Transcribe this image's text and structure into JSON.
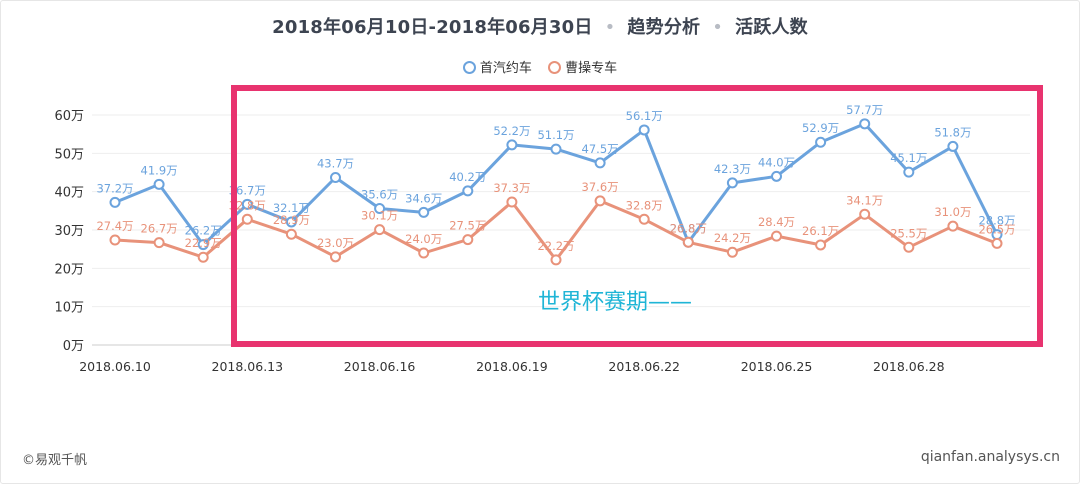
{
  "header": {
    "date_range": "2018年06月10日-2018年06月30日",
    "separator": "•",
    "section": "趋势分析",
    "metric": "活跃人数"
  },
  "legend": {
    "series1": "首汽约车",
    "series2": "曹操专车"
  },
  "annotation": "世界杯赛期——",
  "footer": {
    "source_left": "©易观千帆",
    "source_right": "qianfan.analysys.cn"
  },
  "colors": {
    "series1": "#6ba3dd",
    "series2": "#e8927a",
    "highlight_box": "#e8336f",
    "annotation": "#1fb5d6",
    "grid": "#eeeeee"
  },
  "chart_data": {
    "type": "line",
    "x": [
      "2018.06.10",
      "2018.06.11",
      "2018.06.12",
      "2018.06.13",
      "2018.06.14",
      "2018.06.15",
      "2018.06.16",
      "2018.06.17",
      "2018.06.18",
      "2018.06.19",
      "2018.06.20",
      "2018.06.21",
      "2018.06.22",
      "2018.06.23",
      "2018.06.24",
      "2018.06.25",
      "2018.06.26",
      "2018.06.27",
      "2018.06.28",
      "2018.06.29",
      "2018.06.30"
    ],
    "x_tick_labels": [
      "2018.06.10",
      "2018.06.13",
      "2018.06.16",
      "2018.06.19",
      "2018.06.22",
      "2018.06.25",
      "2018.06.28"
    ],
    "y_ticks": [
      "0万",
      "10万",
      "20万",
      "30万",
      "40万",
      "50万",
      "60万"
    ],
    "ylim": [
      0,
      60
    ],
    "grid": true,
    "legend_position": "top-center",
    "series": [
      {
        "name": "首汽约车",
        "values": [
          37.2,
          41.9,
          26.2,
          36.7,
          32.1,
          43.7,
          35.6,
          34.6,
          40.2,
          52.2,
          51.1,
          47.5,
          56.1,
          26.8,
          42.3,
          44.0,
          52.9,
          57.7,
          45.1,
          51.8,
          28.8
        ],
        "labels": [
          "37.2万",
          "41.9万",
          "26.2万",
          "36.7万",
          "32.1万",
          "43.7万",
          "35.6万",
          "34.6万",
          "40.2万",
          "52.2万",
          "51.1万",
          "47.5万",
          "56.1万",
          "26.8万",
          "42.3万",
          "44.0万",
          "52.9万",
          "57.7万",
          "45.1万",
          "51.8万",
          "28.8万"
        ]
      },
      {
        "name": "曹操专车",
        "values": [
          27.4,
          26.7,
          22.9,
          32.8,
          28.9,
          23.0,
          30.1,
          24.0,
          27.5,
          37.3,
          22.2,
          37.6,
          32.8,
          26.8,
          24.2,
          28.4,
          26.1,
          34.1,
          25.5,
          31.0,
          26.5
        ],
        "labels": [
          "27.4万",
          "26.7万",
          "22.9万",
          "32.8万",
          "28.9万",
          "23.0万",
          "30.1万",
          "24.0万",
          "27.5万",
          "37.3万",
          "22.2万",
          "37.6万",
          "32.8万",
          "26.8万",
          "24.2万",
          "28.4万",
          "26.1万",
          "34.1万",
          "25.5万",
          "31.0万",
          "26.5万"
        ]
      }
    ]
  }
}
